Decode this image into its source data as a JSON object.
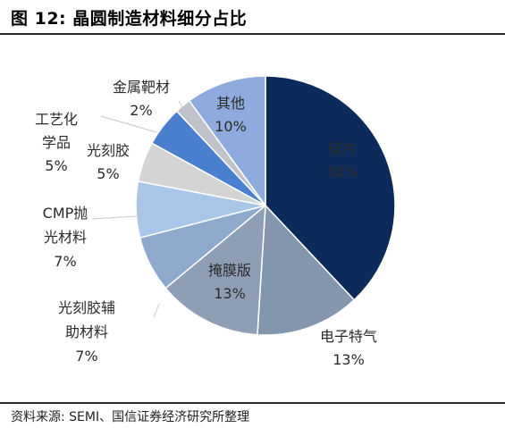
{
  "figure": {
    "title": "图 12:  晶圆制造材料细分占比",
    "source": "资料来源: SEMI、国信证券经济研究所整理"
  },
  "chart_data": {
    "type": "pie",
    "title": "",
    "slices": [
      {
        "label_lines": [
          "硅片"
        ],
        "value": 38,
        "value_label": "38%",
        "color": "#0c2b5b",
        "text_color": "#ffffff",
        "label_pos": "inside"
      },
      {
        "label_lines": [
          "电子特气"
        ],
        "value": 13,
        "value_label": "13%",
        "color": "#8496ad",
        "text_color": "#2b2b2b",
        "label_pos": "outside"
      },
      {
        "label_lines": [
          "掩膜版"
        ],
        "value": 13,
        "value_label": "13%",
        "color": "#8e9fb5",
        "text_color": "#2b2b2b",
        "label_pos": "inside"
      },
      {
        "label_lines": [
          "光刻胶辅",
          "助材料"
        ],
        "value": 7,
        "value_label": "7%",
        "color": "#8fa9cd",
        "text_color": "#2b2b2b",
        "label_pos": "outside"
      },
      {
        "label_lines": [
          "CMP抛",
          "光材料"
        ],
        "value": 7,
        "value_label": "7%",
        "color": "#a9c6e8",
        "text_color": "#2b2b2b",
        "label_pos": "outside"
      },
      {
        "label_lines": [
          "光刻胶"
        ],
        "value": 5,
        "value_label": "5%",
        "color": "#d4d4d4",
        "text_color": "#2b2b2b",
        "label_pos": "outside"
      },
      {
        "label_lines": [
          "工艺化",
          "学品"
        ],
        "value": 5,
        "value_label": "5%",
        "color": "#4a7fd0",
        "text_color": "#2b2b2b",
        "label_pos": "outside"
      },
      {
        "label_lines": [
          "金属靶材"
        ],
        "value": 2,
        "value_label": "2%",
        "color": "#bfc3c9",
        "text_color": "#2b2b2b",
        "label_pos": "outside"
      },
      {
        "label_lines": [
          "其他"
        ],
        "value": 10,
        "value_label": "10%",
        "color": "#8faadc",
        "text_color": "#2b2b2b",
        "label_pos": "inside"
      }
    ]
  }
}
